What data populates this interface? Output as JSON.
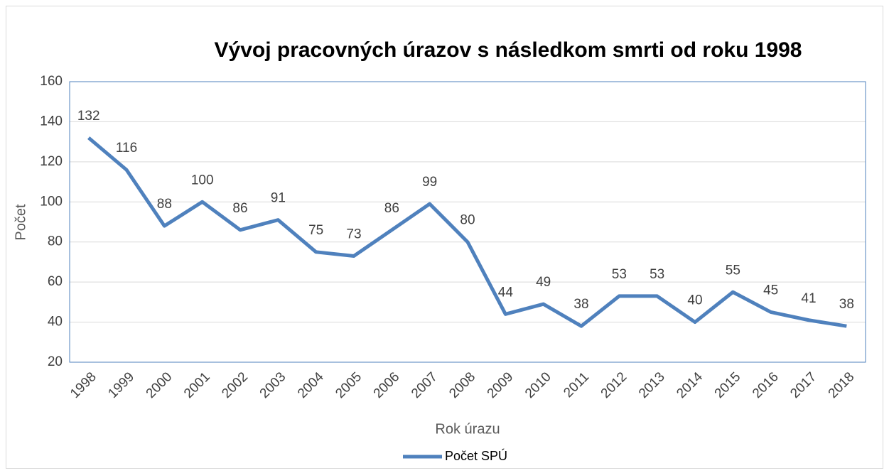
{
  "chart_data": {
    "type": "line",
    "title": "Vývoj pracovných úrazov s následkom smrti  od roku 1998",
    "x_label": "Rok úrazu",
    "y_label": "Počet",
    "categories": [
      "1998",
      "1999",
      "2000",
      "2001",
      "2002",
      "2003",
      "2004",
      "2005",
      "2006",
      "2007",
      "2008",
      "2009",
      "2010",
      "2011",
      "2012",
      "2013",
      "2014",
      "2015",
      "2016",
      "2017",
      "2018"
    ],
    "series": [
      {
        "name": "Počet SPÚ",
        "color": "#4f81bd",
        "values": [
          132,
          116,
          88,
          100,
          86,
          91,
          75,
          73,
          86,
          99,
          80,
          44,
          49,
          38,
          53,
          53,
          40,
          55,
          45,
          41,
          38
        ]
      }
    ],
    "ylim": [
      20,
      160
    ],
    "yticks": [
      20,
      40,
      60,
      80,
      100,
      120,
      140,
      160
    ],
    "grid": true,
    "legend": "bottom"
  }
}
